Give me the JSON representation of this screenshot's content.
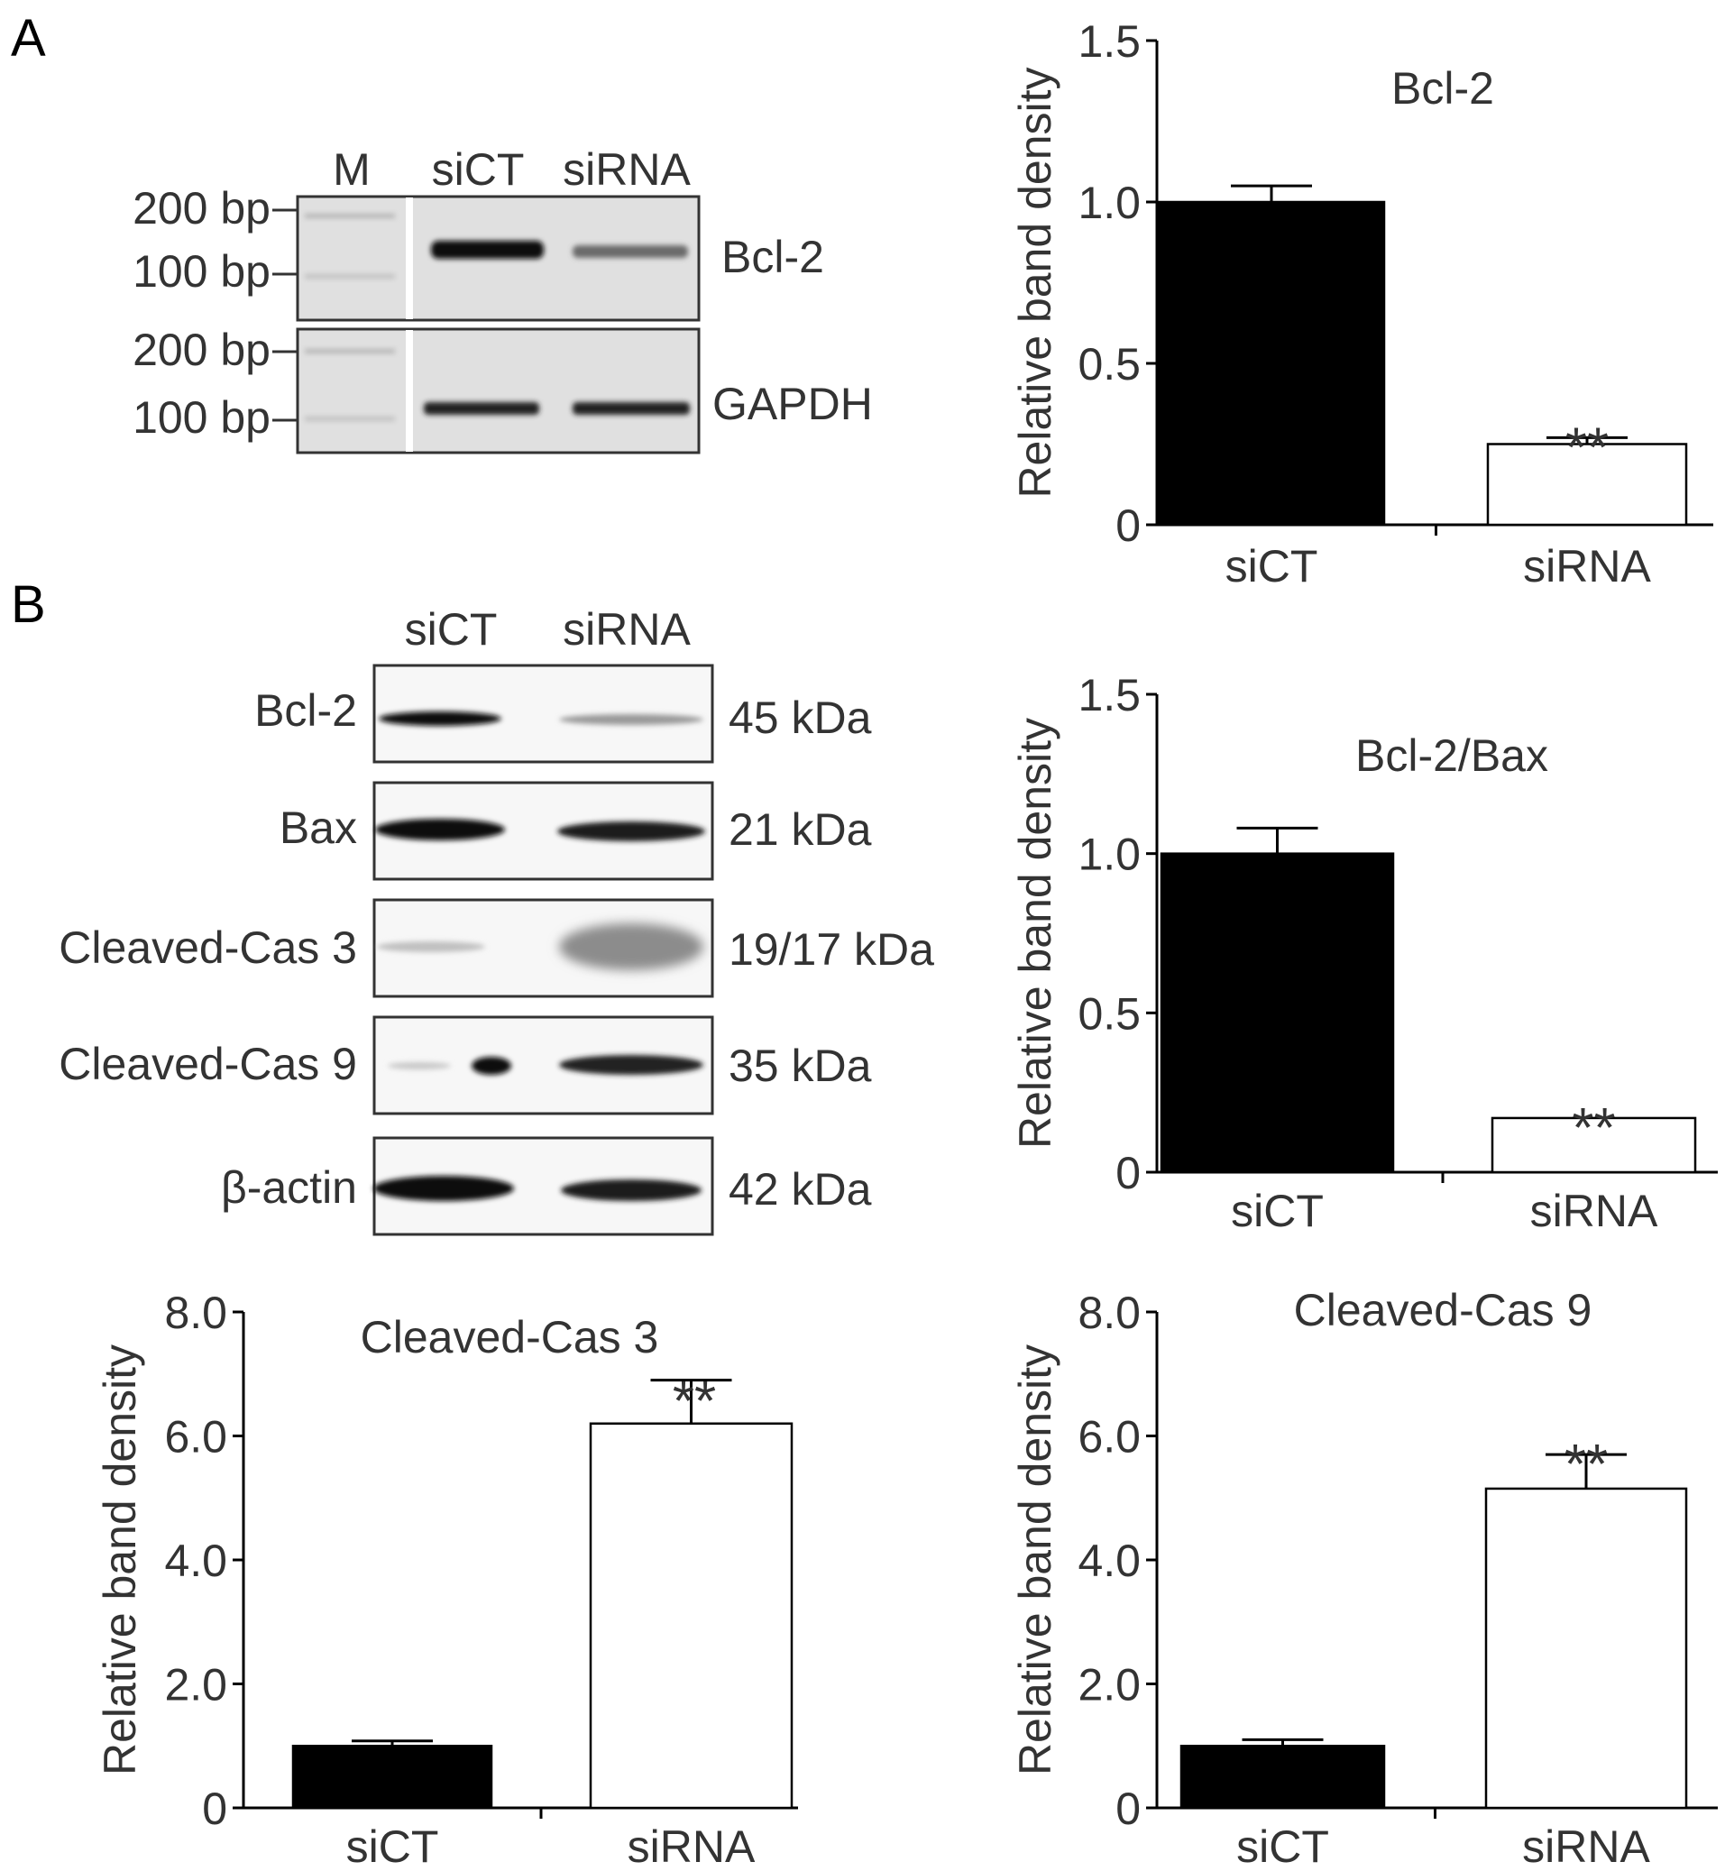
{
  "panels": {
    "A": "A",
    "B": "B"
  },
  "gel_pcr": {
    "lane_labels": [
      "M",
      "siCT",
      "siRNA"
    ],
    "blocks": [
      {
        "target": "Bcl-2",
        "ladder": [
          "200 bp",
          "100 bp"
        ]
      },
      {
        "target": "GAPDH",
        "ladder": [
          "200 bp",
          "100 bp"
        ]
      }
    ]
  },
  "western": {
    "lane_labels": [
      "siCT",
      "siRNA"
    ],
    "rows": [
      {
        "protein": "Bcl-2",
        "size": "45 kDa"
      },
      {
        "protein": "Bax",
        "size": "21 kDa"
      },
      {
        "protein": "Cleaved-Cas 3",
        "size": "19/17 kDa"
      },
      {
        "protein": "Cleaved-Cas 9",
        "size": "35 kDa"
      },
      {
        "protein": "β-actin",
        "size": "42 kDa"
      }
    ]
  },
  "colors": {
    "bar_control": "#000000",
    "bar_treatment": "#ffffff",
    "axis": "#000000",
    "text": "#333333"
  },
  "chart_data": [
    {
      "type": "bar",
      "title": "Bcl-2",
      "ylabel": "Relative band density",
      "xlabel": "",
      "categories": [
        "siCT",
        "siRNA"
      ],
      "values": [
        1.0,
        0.25
      ],
      "errors": [
        0.05,
        0.02
      ],
      "significance": [
        "",
        "**"
      ],
      "ylim": [
        0,
        1.5
      ],
      "yticks": [
        "0",
        "0.5",
        "1.0",
        "1.5"
      ]
    },
    {
      "type": "bar",
      "title": "Bcl-2/Bax",
      "ylabel": "Relative band density",
      "xlabel": "",
      "categories": [
        "siCT",
        "siRNA"
      ],
      "values": [
        1.0,
        0.17
      ],
      "errors": [
        0.08,
        0.0
      ],
      "significance": [
        "",
        "**"
      ],
      "ylim": [
        0,
        1.5
      ],
      "yticks": [
        "0",
        "0.5",
        "1.0",
        "1.5"
      ]
    },
    {
      "type": "bar",
      "title": "Cleaved-Cas 3",
      "ylabel": "Relative band density",
      "xlabel": "",
      "categories": [
        "siCT",
        "siRNA"
      ],
      "values": [
        1.0,
        6.2
      ],
      "errors": [
        0.08,
        0.7
      ],
      "significance": [
        "",
        "**"
      ],
      "ylim": [
        0,
        8.0
      ],
      "yticks": [
        "0",
        "2.0",
        "4.0",
        "6.0",
        "8.0"
      ]
    },
    {
      "type": "bar",
      "title": "Cleaved-Cas 9",
      "ylabel": "Relative band density",
      "xlabel": "",
      "categories": [
        "siCT",
        "siRNA"
      ],
      "values": [
        1.0,
        5.15
      ],
      "errors": [
        0.1,
        0.55
      ],
      "significance": [
        "",
        "**"
      ],
      "ylim": [
        0,
        8.0
      ],
      "yticks": [
        "0",
        "2.0",
        "4.0",
        "6.0",
        "8.0"
      ]
    }
  ]
}
